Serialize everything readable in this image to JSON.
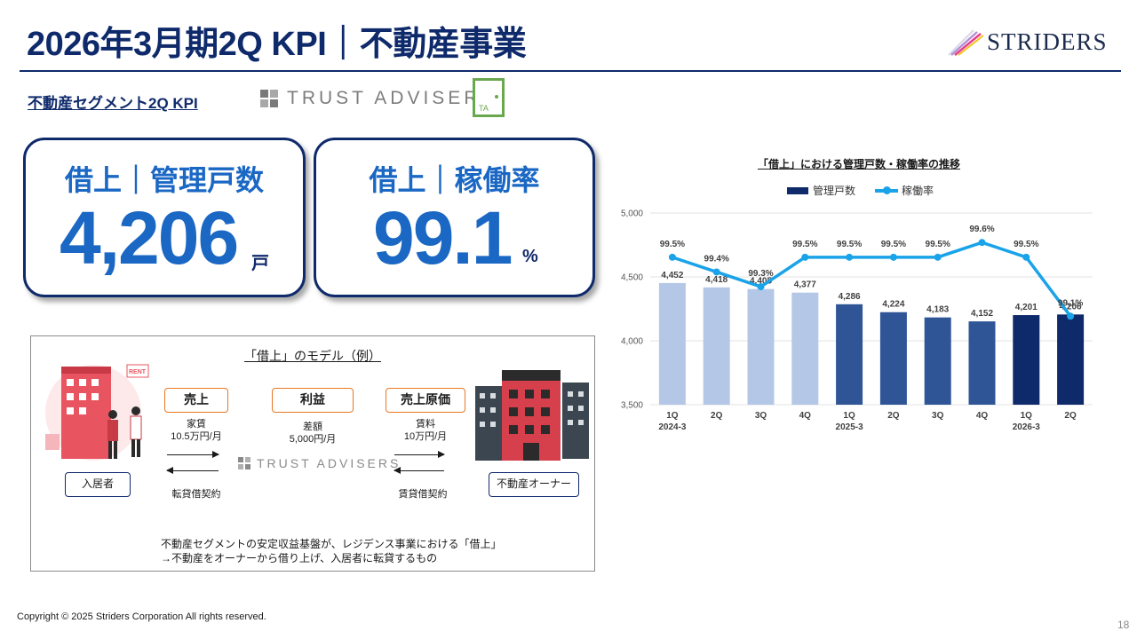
{
  "header": {
    "title": "2026年3月期2Q KPI｜不動産事業",
    "brand": "STRIDERS"
  },
  "segment": {
    "heading": "不動産セグメント2Q KPI",
    "partner_logo_text": "TRUST ADVISERS",
    "partner_mark_text": "TA"
  },
  "kpis": [
    {
      "label": "借上｜管理戸数",
      "value": "4,206",
      "unit": "戸"
    },
    {
      "label": "借上｜稼働率",
      "value": "99.1",
      "unit": "%"
    }
  ],
  "model": {
    "title": "「借上」のモデル（例）",
    "boxes": {
      "sales": "売上",
      "profit": "利益",
      "cost": "売上原価"
    },
    "sales_note": [
      "家賃",
      "10.5万円/月"
    ],
    "profit_note": [
      "差額",
      "5,000円/月"
    ],
    "cost_note": [
      "賃料",
      "10万円/月"
    ],
    "tenant": "入居者",
    "owner": "不動産オーナー",
    "sublease_contract": "転貸借契約",
    "lease_contract": "賃貸借契約",
    "center_logo": "TRUST ADVISERS",
    "rent_sign": "RENT",
    "note_lines": [
      "不動産セグメントの安定収益基盤が、レジデンス事業における「借上」",
      "→不動産をオーナーから借り上げ、入居者に転貸するもの"
    ]
  },
  "chart_data": {
    "type": "bar",
    "title": "「借上」における管理戸数・稼働率の推移",
    "categories": [
      "1Q",
      "2Q",
      "3Q",
      "4Q",
      "1Q",
      "2Q",
      "3Q",
      "4Q",
      "1Q",
      "2Q"
    ],
    "period_labels": [
      "2024-3",
      "",
      "",
      "",
      "2025-3",
      "",
      "",
      "",
      "2026-3",
      ""
    ],
    "series": [
      {
        "name": "管理戸数",
        "kind": "bar",
        "values": [
          4452,
          4418,
          4405,
          4377,
          4286,
          4224,
          4183,
          4152,
          4201,
          4206
        ],
        "labels": [
          "4,452",
          "4,418",
          "4,405",
          "4,377",
          "4,286",
          "4,224",
          "4,183",
          "4,152",
          "4,201",
          "4,206"
        ],
        "colors": [
          "#b4c7e7",
          "#b4c7e7",
          "#b4c7e7",
          "#b4c7e7",
          "#2f5597",
          "#2f5597",
          "#2f5597",
          "#2f5597",
          "#0f2a6b",
          "#0f2a6b"
        ]
      },
      {
        "name": "稼働率",
        "kind": "line",
        "values": [
          99.5,
          99.4,
          99.3,
          99.5,
          99.5,
          99.5,
          99.5,
          99.6,
          99.5,
          99.1
        ],
        "labels": [
          "99.5%",
          "99.4%",
          "99.3%",
          "99.5%",
          "99.5%",
          "99.5%",
          "99.5%",
          "99.6%",
          "99.5%",
          "99.1%"
        ],
        "color": "#1aa3e8"
      }
    ],
    "yticks": [
      "5,000",
      "4,500",
      "4,000",
      "3,500"
    ],
    "ylim": [
      3500,
      5000
    ],
    "y2lim": [
      98.5,
      99.8
    ],
    "grid": true,
    "legend": "top"
  },
  "footer": {
    "copyright": "Copyright © 2025 Striders Corporation All rights reserved.",
    "page": "18"
  }
}
